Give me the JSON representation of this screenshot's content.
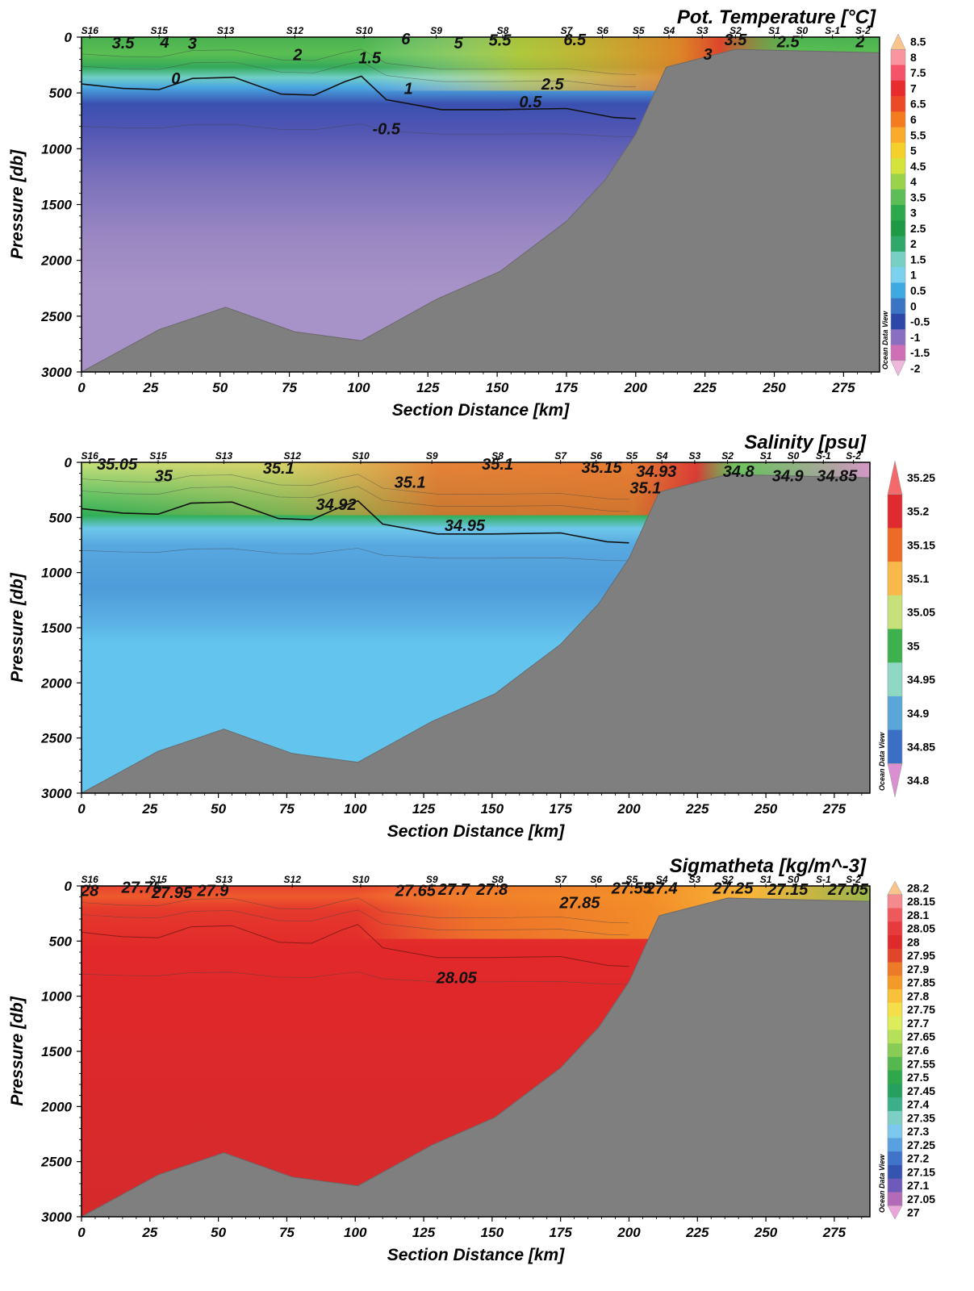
{
  "chart_data": [
    {
      "type": "heatmap",
      "title": "Pot. Temperature [°C]",
      "xlabel": "Section Distance [km]",
      "ylabel": "Pressure [db]",
      "xlim": [
        0,
        288
      ],
      "ylim": [
        0,
        3000
      ],
      "y_inverted": true,
      "xticks": [
        "0",
        "25",
        "50",
        "75",
        "100",
        "125",
        "150",
        "175",
        "200",
        "225",
        "250",
        "275"
      ],
      "yticks": [
        "0",
        "500",
        "1000",
        "1500",
        "2000",
        "2500",
        "3000"
      ],
      "stations": [
        {
          "name": "S16",
          "x": 3
        },
        {
          "name": "S15",
          "x": 28
        },
        {
          "name": "S13",
          "x": 52
        },
        {
          "name": "S12",
          "x": 77
        },
        {
          "name": "S10",
          "x": 102
        },
        {
          "name": "S9",
          "x": 128
        },
        {
          "name": "S8",
          "x": 152
        },
        {
          "name": "S7",
          "x": 175
        },
        {
          "name": "S6",
          "x": 188
        },
        {
          "name": "S5",
          "x": 201
        },
        {
          "name": "S4",
          "x": 212
        },
        {
          "name": "S3",
          "x": 224
        },
        {
          "name": "S2",
          "x": 236
        },
        {
          "name": "S1",
          "x": 250
        },
        {
          "name": "S0",
          "x": 260
        },
        {
          "name": "S-1",
          "x": 271
        },
        {
          "name": "S-2",
          "x": 282
        }
      ],
      "colorbar": {
        "labels": [
          "8.5",
          "8",
          "7.5",
          "7",
          "6.5",
          "6",
          "5.5",
          "5",
          "4.5",
          "4",
          "3.5",
          "3",
          "2.5",
          "2",
          "1.5",
          "1",
          "0.5",
          "0",
          "-0.5",
          "-1",
          "-1.5",
          "-2"
        ],
        "colors": [
          "#fbc48c",
          "#f8959e",
          "#f4536a",
          "#e82b2d",
          "#ec4a26",
          "#f47b20",
          "#fbab2c",
          "#f6d02a",
          "#d5e33d",
          "#9ad24b",
          "#5dbe57",
          "#2ea84c",
          "#1f9a44",
          "#2fa86a",
          "#78cfc4",
          "#7cd2ee",
          "#3fa9e2",
          "#3a74c2",
          "#2c47a7",
          "#8a6fc0",
          "#cf6fb5",
          "#f0b7dd"
        ],
        "note": "Ocean Data View"
      },
      "contour_labels": [
        {
          "text": "3.5",
          "x": 15,
          "y": 50
        },
        {
          "text": "4",
          "x": 30,
          "y": 45
        },
        {
          "text": "3",
          "x": 40,
          "y": 55
        },
        {
          "text": "2",
          "x": 78,
          "y": 155
        },
        {
          "text": "1.5",
          "x": 104,
          "y": 185
        },
        {
          "text": "0",
          "x": 34,
          "y": 370
        },
        {
          "text": "1",
          "x": 118,
          "y": 460
        },
        {
          "text": "2.5",
          "x": 170,
          "y": 420
        },
        {
          "text": "0.5",
          "x": 162,
          "y": 580
        },
        {
          "text": "-0.5",
          "x": 110,
          "y": 820
        },
        {
          "text": "6",
          "x": 117,
          "y": 15
        },
        {
          "text": "5",
          "x": 136,
          "y": 50
        },
        {
          "text": "5.5",
          "x": 151,
          "y": 25
        },
        {
          "text": "6.5",
          "x": 178,
          "y": 20
        },
        {
          "text": "3",
          "x": 226,
          "y": 150
        },
        {
          "text": "3.5",
          "x": 236,
          "y": 20
        },
        {
          "text": "2.5",
          "x": 255,
          "y": 40
        },
        {
          "text": "2",
          "x": 281,
          "y": 40
        }
      ]
    },
    {
      "type": "heatmap",
      "title": "Salinity [psu]",
      "xlabel": "Section Distance [km]",
      "ylabel": "Pressure [db]",
      "xlim": [
        0,
        288
      ],
      "ylim": [
        0,
        3000
      ],
      "y_inverted": true,
      "xticks": [
        "0",
        "25",
        "50",
        "75",
        "100",
        "125",
        "150",
        "175",
        "200",
        "225",
        "250",
        "275"
      ],
      "yticks": [
        "0",
        "500",
        "1000",
        "1500",
        "2000",
        "2500",
        "3000"
      ],
      "stations": [
        {
          "name": "S16",
          "x": 3
        },
        {
          "name": "S15",
          "x": 28
        },
        {
          "name": "S13",
          "x": 52
        },
        {
          "name": "S12",
          "x": 77
        },
        {
          "name": "S10",
          "x": 102
        },
        {
          "name": "S9",
          "x": 128
        },
        {
          "name": "S8",
          "x": 152
        },
        {
          "name": "S7",
          "x": 175
        },
        {
          "name": "S6",
          "x": 188
        },
        {
          "name": "S5",
          "x": 201
        },
        {
          "name": "S4",
          "x": 212
        },
        {
          "name": "S3",
          "x": 224
        },
        {
          "name": "S2",
          "x": 236
        },
        {
          "name": "S1",
          "x": 250
        },
        {
          "name": "S0",
          "x": 260
        },
        {
          "name": "S-1",
          "x": 271
        },
        {
          "name": "S-2",
          "x": 282
        }
      ],
      "colorbar": {
        "labels": [
          "35.25",
          "35.2",
          "35.15",
          "35.1",
          "35.05",
          "35",
          "34.95",
          "34.9",
          "34.85",
          "34.8"
        ],
        "colors": [
          "#f46a6a",
          "#df2a2f",
          "#ee6b27",
          "#f9b94a",
          "#c8e07a",
          "#3cb14e",
          "#8fd8c4",
          "#5aa6d8",
          "#3b6fc3",
          "#d98fd0"
        ],
        "note": "Ocean Data View"
      },
      "contour_labels": [
        {
          "text": "35.05",
          "x": 13,
          "y": 15
        },
        {
          "text": "35",
          "x": 30,
          "y": 120
        },
        {
          "text": "35.1",
          "x": 72,
          "y": 50
        },
        {
          "text": "34.92",
          "x": 93,
          "y": 380
        },
        {
          "text": "35.1",
          "x": 120,
          "y": 180
        },
        {
          "text": "35.1",
          "x": 152,
          "y": 15
        },
        {
          "text": "34.95",
          "x": 140,
          "y": 570
        },
        {
          "text": "35.15",
          "x": 190,
          "y": 45
        },
        {
          "text": "35.1",
          "x": 206,
          "y": 230
        },
        {
          "text": "34.93",
          "x": 210,
          "y": 80
        },
        {
          "text": "34.8",
          "x": 240,
          "y": 80
        },
        {
          "text": "34.9",
          "x": 258,
          "y": 120
        },
        {
          "text": "34.85",
          "x": 276,
          "y": 120
        }
      ]
    },
    {
      "type": "heatmap",
      "title": "Sigmatheta [kg/m^-3]",
      "xlabel": "Section Distance [km]",
      "ylabel": "Pressure [db]",
      "xlim": [
        0,
        288
      ],
      "ylim": [
        0,
        3000
      ],
      "y_inverted": true,
      "xticks": [
        "0",
        "25",
        "50",
        "75",
        "100",
        "125",
        "150",
        "175",
        "200",
        "225",
        "250",
        "275"
      ],
      "yticks": [
        "0",
        "500",
        "1000",
        "1500",
        "2000",
        "2500",
        "3000"
      ],
      "stations": [
        {
          "name": "S16",
          "x": 3
        },
        {
          "name": "S15",
          "x": 28
        },
        {
          "name": "S13",
          "x": 52
        },
        {
          "name": "S12",
          "x": 77
        },
        {
          "name": "S10",
          "x": 102
        },
        {
          "name": "S9",
          "x": 128
        },
        {
          "name": "S8",
          "x": 152
        },
        {
          "name": "S7",
          "x": 175
        },
        {
          "name": "S6",
          "x": 188
        },
        {
          "name": "S5",
          "x": 201
        },
        {
          "name": "S4",
          "x": 212
        },
        {
          "name": "S3",
          "x": 224
        },
        {
          "name": "S2",
          "x": 236
        },
        {
          "name": "S1",
          "x": 250
        },
        {
          "name": "S0",
          "x": 260
        },
        {
          "name": "S-1",
          "x": 271
        },
        {
          "name": "S-2",
          "x": 282
        }
      ],
      "colorbar": {
        "labels": [
          "28.2",
          "28.15",
          "28.1",
          "28.05",
          "28",
          "27.95",
          "27.9",
          "27.85",
          "27.8",
          "27.75",
          "27.7",
          "27.65",
          "27.6",
          "27.55",
          "27.5",
          "27.45",
          "27.4",
          "27.35",
          "27.3",
          "27.25",
          "27.2",
          "27.15",
          "27.1",
          "27.05",
          "27"
        ],
        "colors": [
          "#fbc48c",
          "#f48a8e",
          "#ee5a5c",
          "#e63a3c",
          "#de2a2a",
          "#e0462a",
          "#ec7a26",
          "#f49a28",
          "#f9c03a",
          "#f4df4a",
          "#dcec5a",
          "#b6df5a",
          "#88cc55",
          "#55b84e",
          "#2ea84a",
          "#26a05e",
          "#3aaf8a",
          "#7dcfc6",
          "#7cc8ee",
          "#58a0e0",
          "#3f74c8",
          "#3554b0",
          "#6e5ab8",
          "#b36ab8",
          "#eca5da"
        ],
        "note": "Ocean Data View"
      },
      "contour_labels": [
        {
          "text": "28",
          "x": 3,
          "y": 40
        },
        {
          "text": "27.75",
          "x": 22,
          "y": 10
        },
        {
          "text": "27.95",
          "x": 33,
          "y": 60
        },
        {
          "text": "27.9",
          "x": 48,
          "y": 40
        },
        {
          "text": "27.65",
          "x": 122,
          "y": 40
        },
        {
          "text": "27.7",
          "x": 136,
          "y": 30
        },
        {
          "text": "27.8",
          "x": 150,
          "y": 30
        },
        {
          "text": "27.85",
          "x": 182,
          "y": 150
        },
        {
          "text": "28.05",
          "x": 137,
          "y": 830
        },
        {
          "text": "27.55",
          "x": 201,
          "y": 20
        },
        {
          "text": "27.4",
          "x": 212,
          "y": 20
        },
        {
          "text": "27.25",
          "x": 238,
          "y": 20
        },
        {
          "text": "27.15",
          "x": 258,
          "y": 30
        },
        {
          "text": "27.05",
          "x": 280,
          "y": 30
        }
      ]
    }
  ]
}
